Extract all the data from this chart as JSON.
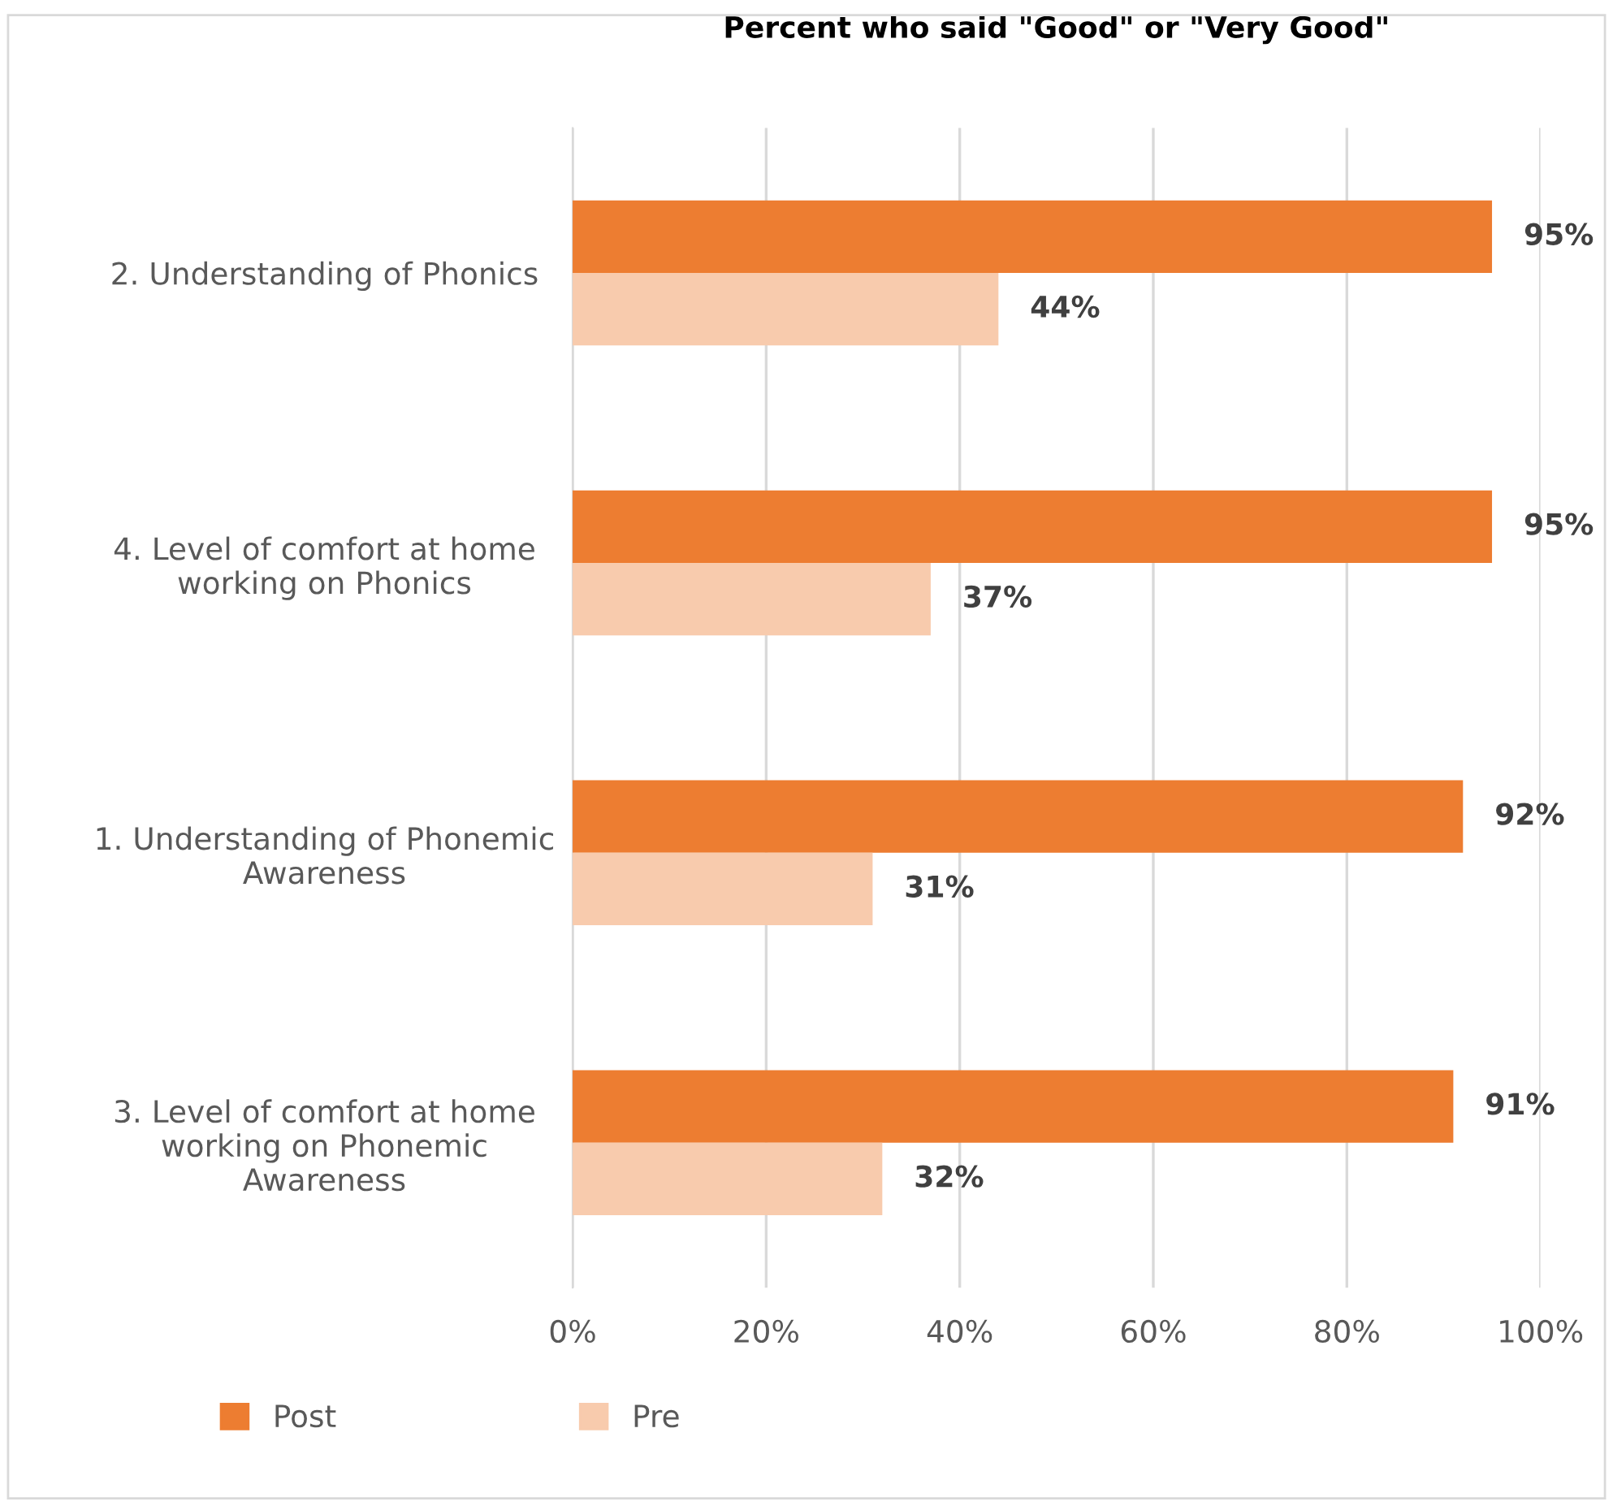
{
  "chart_data": {
    "type": "bar",
    "orientation": "horizontal",
    "title": "Percent who said \"Good\" or \"Very Good\"",
    "categories": [
      "2. Understanding of Phonics",
      "4. Level of comfort at home\nworking on Phonics",
      "1. Understanding of Phonemic\nAwareness",
      "3. Level of comfort at home\nworking on Phonemic\nAwareness"
    ],
    "series": [
      {
        "name": "Post",
        "color": "#ed7d31",
        "values": [
          95,
          95,
          92,
          91
        ],
        "value_labels": [
          "95%",
          "95%",
          "92%",
          "91%"
        ]
      },
      {
        "name": "Pre",
        "color": "#f8cbad",
        "values": [
          44,
          37,
          31,
          32
        ],
        "value_labels": [
          "44%",
          "37%",
          "31%",
          "32%"
        ]
      }
    ],
    "xlim": [
      0,
      100
    ],
    "xticks": [
      {
        "value": 0,
        "label": "0%"
      },
      {
        "value": 20,
        "label": "20%"
      },
      {
        "value": 40,
        "label": "40%"
      },
      {
        "value": 60,
        "label": "60%"
      },
      {
        "value": 80,
        "label": "80%"
      },
      {
        "value": 100,
        "label": "100%"
      }
    ],
    "grid": "x",
    "legend": "bottom left"
  }
}
